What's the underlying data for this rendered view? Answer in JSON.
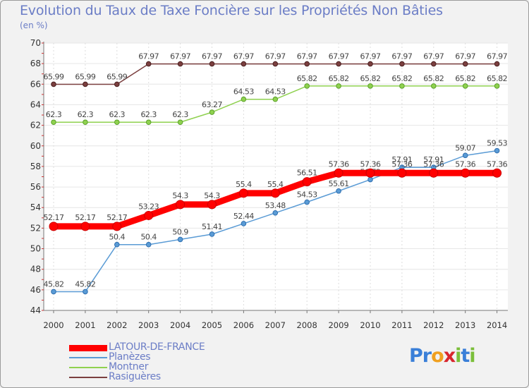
{
  "chart_data": {
    "type": "line",
    "title": "Evolution du Taux de Taxe Foncière sur les Propriétés Non Bâties",
    "ylabel": "(en %)",
    "ylim": [
      44,
      70
    ],
    "yticks": [
      44,
      46,
      48,
      50,
      52,
      54,
      56,
      58,
      60,
      62,
      64,
      66,
      68,
      70
    ],
    "categories": [
      "2000",
      "2001",
      "2002",
      "2003",
      "2004",
      "2005",
      "2006",
      "2007",
      "2008",
      "2009",
      "2010",
      "2011",
      "2012",
      "2013",
      "2014"
    ],
    "series": [
      {
        "name": "LATOUR-DE-FRANCE",
        "color": "#ff0000",
        "values": [
          52.17,
          52.17,
          52.17,
          53.23,
          54.3,
          54.3,
          55.4,
          55.4,
          56.51,
          57.36,
          57.36,
          57.36,
          57.36,
          57.36,
          57.36
        ],
        "labels": [
          "52.17",
          "52.17",
          "52.17",
          "53.23",
          "54.3",
          "54.3",
          "55.4",
          "55.4",
          "56.51",
          "57.36",
          "57.36",
          "57.36",
          "57.36",
          "57.36",
          "57.36"
        ]
      },
      {
        "name": "Planèzes",
        "color": "#5a9bd5",
        "values": [
          45.82,
          45.82,
          50.4,
          50.4,
          50.9,
          51.41,
          52.44,
          53.48,
          54.53,
          55.61,
          56.72,
          57.91,
          57.91,
          59.07,
          59.53
        ],
        "labels": [
          "45.82",
          "45.82",
          "50.4",
          "50.4",
          "50.9",
          "51.41",
          "52.44",
          "53.48",
          "54.53",
          "55.61",
          "56.72",
          "57.91",
          "57.91",
          "59.07",
          "59.53"
        ]
      },
      {
        "name": "Montner",
        "color": "#8fd14f",
        "values": [
          62.3,
          62.3,
          62.3,
          62.3,
          62.3,
          63.27,
          64.53,
          64.53,
          65.82,
          65.82,
          65.82,
          65.82,
          65.82,
          65.82,
          65.82
        ],
        "labels": [
          "62.3",
          "62.3",
          "62.3",
          "62.3",
          "62.3",
          "63.27",
          "64.53",
          "64.53",
          "65.82",
          "65.82",
          "65.82",
          "65.82",
          "65.82",
          "65.82",
          "65.82"
        ]
      },
      {
        "name": "Rasiguères",
        "color": "#7b3f3f",
        "values": [
          65.99,
          65.99,
          65.99,
          67.97,
          67.97,
          67.97,
          67.97,
          67.97,
          67.97,
          67.97,
          67.97,
          67.97,
          67.97,
          67.97,
          67.97
        ],
        "labels": [
          "65.99",
          "65.99",
          "65.99",
          "67.97",
          "67.97",
          "67.97",
          "67.97",
          "67.97",
          "67.97",
          "67.97",
          "67.97",
          "67.97",
          "67.97",
          "67.97",
          "67.97"
        ]
      }
    ]
  },
  "logo": {
    "letters": [
      "P",
      "r",
      "o",
      "x",
      "i",
      "t",
      "i"
    ],
    "colors": [
      "#3a7fd8",
      "#3a7fd8",
      "#f0a020",
      "#d8262e",
      "#7bbf3a",
      "#3a7fd8",
      "#7bbf3a"
    ]
  }
}
